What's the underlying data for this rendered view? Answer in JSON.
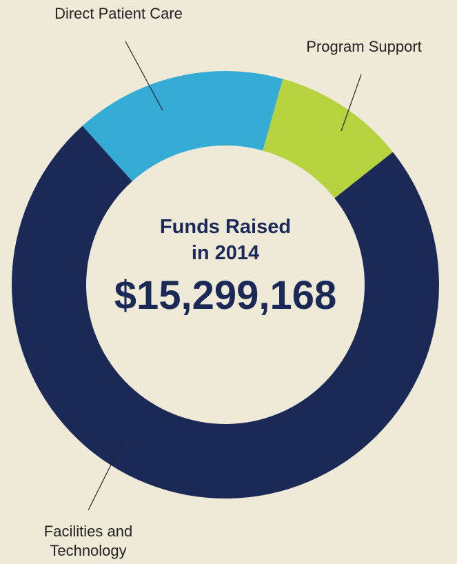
{
  "chart_data": {
    "type": "donut",
    "center_text": [
      "Funds Raised",
      "in 2014"
    ],
    "total": "$15,299,168",
    "categories": [
      "Direct Patient Care",
      "Program Support",
      "Facilities and Technology"
    ],
    "values": [
      16,
      10,
      74
    ],
    "colors": [
      "#34acd6",
      "#b6d33f",
      "#1b2957"
    ]
  }
}
